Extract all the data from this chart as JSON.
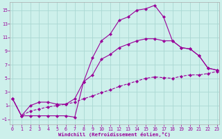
{
  "xlabel": "Windchill (Refroidissement éolien,°C)",
  "bg_color": "#cdf0eb",
  "grid_color": "#aad8d2",
  "line_color": "#990099",
  "xlim": [
    -0.3,
    23.3
  ],
  "ylim": [
    -1.8,
    16.2
  ],
  "yticks": [
    -1,
    1,
    3,
    5,
    7,
    9,
    11,
    13,
    15
  ],
  "xticks": [
    0,
    1,
    2,
    3,
    4,
    5,
    6,
    7,
    8,
    9,
    10,
    11,
    12,
    13,
    14,
    15,
    16,
    17,
    18,
    19,
    20,
    21,
    22,
    23
  ],
  "line1_x": [
    0,
    1,
    2,
    3,
    4,
    5,
    6,
    7,
    8,
    9,
    10,
    11,
    12,
    13,
    14,
    15,
    16,
    17,
    18,
    19,
    20,
    21,
    22,
    23
  ],
  "line1_y": [
    2.0,
    -0.5,
    -0.5,
    -0.5,
    -0.5,
    -0.5,
    -0.5,
    -0.7,
    4.5,
    8.0,
    10.5,
    11.5,
    13.5,
    14.0,
    15.0,
    15.2,
    15.7,
    14.0,
    10.5,
    9.5,
    9.3,
    8.3,
    6.5,
    6.2
  ],
  "line2_x": [
    0,
    1,
    2,
    3,
    4,
    5,
    6,
    7,
    8,
    9,
    10,
    11,
    12,
    13,
    14,
    15,
    16,
    17,
    18,
    19,
    20,
    21,
    22,
    23
  ],
  "line2_y": [
    2.0,
    -0.5,
    1.0,
    1.5,
    1.5,
    1.2,
    1.2,
    2.0,
    4.5,
    5.5,
    7.8,
    8.5,
    9.5,
    10.0,
    10.5,
    10.8,
    10.8,
    10.5,
    10.5,
    9.5,
    9.3,
    8.3,
    6.5,
    6.2
  ],
  "line3_x": [
    0,
    1,
    2,
    3,
    4,
    5,
    6,
    7,
    8,
    9,
    10,
    11,
    12,
    13,
    14,
    15,
    16,
    17,
    18,
    19,
    20,
    21,
    22,
    23
  ],
  "line3_y": [
    2.0,
    -0.5,
    0.2,
    0.5,
    0.8,
    1.0,
    1.2,
    1.5,
    2.0,
    2.4,
    2.9,
    3.3,
    3.8,
    4.2,
    4.6,
    5.0,
    5.2,
    5.1,
    5.0,
    5.3,
    5.5,
    5.5,
    5.7,
    6.0
  ]
}
